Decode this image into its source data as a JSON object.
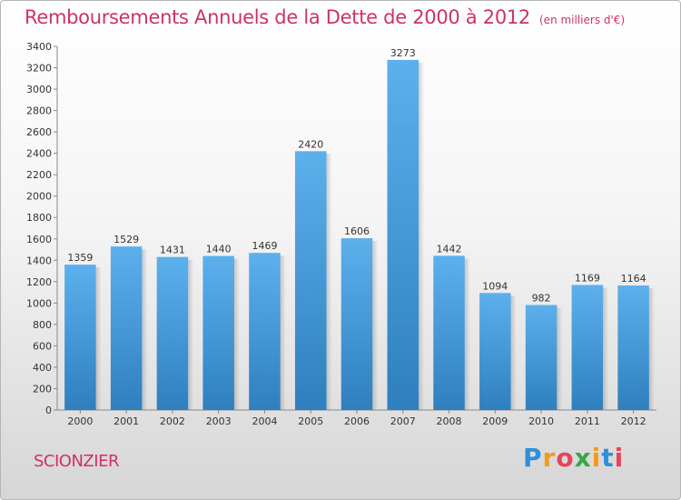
{
  "title": "Remboursements Annuels de la Dette de 2000 à 2012",
  "subtitle": "(en milliers d'€)",
  "town": "SCIONZIER",
  "logo": {
    "letters": [
      "P",
      "r",
      "o",
      "x",
      "i",
      "t",
      "i"
    ],
    "colors": [
      "#2f8fd8",
      "#f39a1b",
      "#e8445a",
      "#3aa64a",
      "#f39a1b",
      "#2f8fd8",
      "#e8445a"
    ]
  },
  "chart_data": {
    "type": "bar",
    "categories": [
      "2000",
      "2001",
      "2002",
      "2003",
      "2004",
      "2005",
      "2006",
      "2007",
      "2008",
      "2009",
      "2010",
      "2011",
      "2012"
    ],
    "values": [
      1359,
      1529,
      1431,
      1440,
      1469,
      2420,
      1606,
      3273,
      1442,
      1094,
      982,
      1169,
      1164
    ],
    "ylim": [
      0,
      3400
    ],
    "ytick_step": 200,
    "grid": false,
    "bar_color": "#4a9fe0"
  }
}
